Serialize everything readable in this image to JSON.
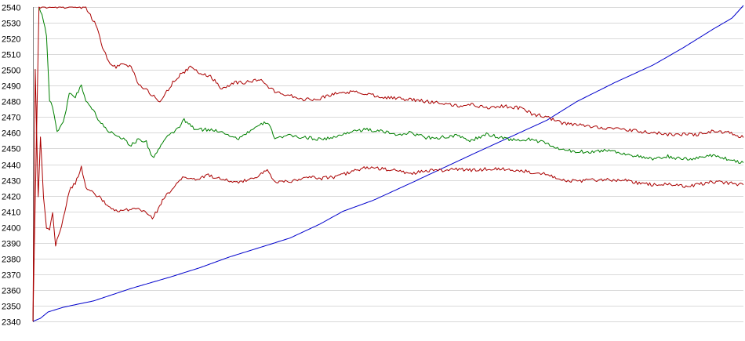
{
  "chart_data": {
    "type": "line",
    "title": "",
    "xlabel": "",
    "ylabel": "",
    "ylim": [
      2340,
      2540
    ],
    "y_ticks": [
      "2340",
      "2350",
      "2360",
      "2370",
      "2380",
      "2390",
      "2400",
      "2410",
      "2420",
      "2430",
      "2440",
      "2450",
      "2460",
      "2470",
      "2480",
      "2490",
      "2500",
      "2510",
      "2520",
      "2530",
      "2540"
    ],
    "grid": true,
    "legend": "none",
    "series": [
      {
        "color": "#0000cc",
        "points": [
          [
            0,
            2340
          ],
          [
            10,
            2342
          ],
          [
            20,
            2346
          ],
          [
            40,
            2349
          ],
          [
            80,
            2353
          ],
          [
            130,
            2361
          ],
          [
            180,
            2368
          ],
          [
            220,
            2374
          ],
          [
            260,
            2381
          ],
          [
            300,
            2387
          ],
          [
            340,
            2393
          ],
          [
            380,
            2402
          ],
          [
            410,
            2410
          ],
          [
            450,
            2417
          ],
          [
            500,
            2428
          ],
          [
            540,
            2437
          ],
          [
            580,
            2446
          ],
          [
            630,
            2457
          ],
          [
            680,
            2468
          ],
          [
            720,
            2480
          ],
          [
            770,
            2492
          ],
          [
            820,
            2503
          ],
          [
            860,
            2514
          ],
          [
            900,
            2526
          ],
          [
            925,
            2533
          ],
          [
            940,
            2541
          ]
        ]
      },
      {
        "color": "#008000",
        "points": [
          [
            8,
            2540
          ],
          [
            12,
            2536
          ],
          [
            18,
            2522
          ],
          [
            22,
            2480
          ],
          [
            26,
            2477
          ],
          [
            32,
            2461
          ],
          [
            40,
            2466
          ],
          [
            48,
            2485
          ],
          [
            56,
            2483
          ],
          [
            64,
            2490
          ],
          [
            70,
            2481
          ],
          [
            80,
            2474
          ],
          [
            90,
            2466
          ],
          [
            100,
            2461
          ],
          [
            110,
            2459
          ],
          [
            120,
            2456
          ],
          [
            130,
            2452
          ],
          [
            140,
            2456
          ],
          [
            150,
            2454
          ],
          [
            158,
            2444
          ],
          [
            164,
            2448
          ],
          [
            175,
            2456
          ],
          [
            190,
            2462
          ],
          [
            200,
            2468
          ],
          [
            215,
            2462
          ],
          [
            230,
            2462
          ],
          [
            250,
            2461
          ],
          [
            270,
            2456
          ],
          [
            290,
            2462
          ],
          [
            310,
            2467
          ],
          [
            320,
            2457
          ],
          [
            340,
            2458
          ],
          [
            360,
            2457
          ],
          [
            380,
            2456
          ],
          [
            400,
            2457
          ],
          [
            420,
            2461
          ],
          [
            440,
            2462
          ],
          [
            460,
            2461
          ],
          [
            480,
            2459
          ],
          [
            500,
            2460
          ],
          [
            520,
            2457
          ],
          [
            540,
            2457
          ],
          [
            560,
            2458
          ],
          [
            580,
            2455
          ],
          [
            600,
            2459
          ],
          [
            620,
            2457
          ],
          [
            640,
            2455
          ],
          [
            660,
            2456
          ],
          [
            680,
            2453
          ],
          [
            700,
            2449
          ],
          [
            720,
            2448
          ],
          [
            740,
            2448
          ],
          [
            760,
            2449
          ],
          [
            780,
            2447
          ],
          [
            800,
            2445
          ],
          [
            820,
            2443
          ],
          [
            840,
            2445
          ],
          [
            860,
            2443
          ],
          [
            880,
            2444
          ],
          [
            900,
            2446
          ],
          [
            920,
            2443
          ],
          [
            940,
            2441
          ]
        ]
      },
      {
        "color": "#aa0000",
        "points": [
          [
            0,
            2340
          ],
          [
            8,
            2540
          ],
          [
            50,
            2540
          ],
          [
            60,
            2540
          ],
          [
            70,
            2540
          ],
          [
            78,
            2533
          ],
          [
            85,
            2527
          ],
          [
            92,
            2515
          ],
          [
            100,
            2505
          ],
          [
            110,
            2502
          ],
          [
            120,
            2504
          ],
          [
            130,
            2502
          ],
          [
            140,
            2491
          ],
          [
            150,
            2487
          ],
          [
            160,
            2483
          ],
          [
            168,
            2479
          ],
          [
            175,
            2485
          ],
          [
            185,
            2492
          ],
          [
            195,
            2497
          ],
          [
            210,
            2502
          ],
          [
            220,
            2498
          ],
          [
            235,
            2496
          ],
          [
            250,
            2488
          ],
          [
            265,
            2492
          ],
          [
            280,
            2492
          ],
          [
            290,
            2493
          ],
          [
            300,
            2494
          ],
          [
            310,
            2490
          ],
          [
            320,
            2486
          ],
          [
            340,
            2484
          ],
          [
            360,
            2481
          ],
          [
            380,
            2482
          ],
          [
            400,
            2485
          ],
          [
            420,
            2486
          ],
          [
            440,
            2485
          ],
          [
            460,
            2483
          ],
          [
            480,
            2482
          ],
          [
            500,
            2481
          ],
          [
            520,
            2480
          ],
          [
            540,
            2479
          ],
          [
            560,
            2477
          ],
          [
            580,
            2478
          ],
          [
            600,
            2476
          ],
          [
            620,
            2477
          ],
          [
            640,
            2476
          ],
          [
            650,
            2475
          ],
          [
            660,
            2472
          ],
          [
            680,
            2470
          ],
          [
            700,
            2466
          ],
          [
            720,
            2465
          ],
          [
            740,
            2464
          ],
          [
            760,
            2463
          ],
          [
            780,
            2462
          ],
          [
            800,
            2461
          ],
          [
            820,
            2460
          ],
          [
            840,
            2459
          ],
          [
            860,
            2459
          ],
          [
            880,
            2459
          ],
          [
            900,
            2461
          ],
          [
            920,
            2460
          ],
          [
            940,
            2457
          ]
        ]
      },
      {
        "color": "#aa0000",
        "points": [
          [
            0,
            2340
          ],
          [
            3,
            2500
          ],
          [
            7,
            2420
          ],
          [
            10,
            2457
          ],
          [
            14,
            2418
          ],
          [
            18,
            2400
          ],
          [
            22,
            2398
          ],
          [
            26,
            2410
          ],
          [
            30,
            2388
          ],
          [
            34,
            2395
          ],
          [
            40,
            2405
          ],
          [
            48,
            2423
          ],
          [
            56,
            2428
          ],
          [
            64,
            2438
          ],
          [
            70,
            2425
          ],
          [
            80,
            2422
          ],
          [
            90,
            2418
          ],
          [
            100,
            2413
          ],
          [
            110,
            2410
          ],
          [
            120,
            2410
          ],
          [
            130,
            2412
          ],
          [
            140,
            2411
          ],
          [
            150,
            2409
          ],
          [
            158,
            2406
          ],
          [
            164,
            2410
          ],
          [
            175,
            2420
          ],
          [
            190,
            2427
          ],
          [
            200,
            2432
          ],
          [
            215,
            2430
          ],
          [
            230,
            2433
          ],
          [
            250,
            2431
          ],
          [
            270,
            2428
          ],
          [
            290,
            2431
          ],
          [
            310,
            2436
          ],
          [
            320,
            2429
          ],
          [
            340,
            2429
          ],
          [
            360,
            2432
          ],
          [
            380,
            2431
          ],
          [
            400,
            2432
          ],
          [
            420,
            2435
          ],
          [
            440,
            2438
          ],
          [
            460,
            2437
          ],
          [
            480,
            2436
          ],
          [
            500,
            2434
          ],
          [
            520,
            2436
          ],
          [
            540,
            2436
          ],
          [
            560,
            2437
          ],
          [
            580,
            2436
          ],
          [
            600,
            2437
          ],
          [
            620,
            2437
          ],
          [
            640,
            2436
          ],
          [
            660,
            2435
          ],
          [
            680,
            2434
          ],
          [
            700,
            2430
          ],
          [
            720,
            2429
          ],
          [
            740,
            2430
          ],
          [
            760,
            2430
          ],
          [
            780,
            2430
          ],
          [
            800,
            2428
          ],
          [
            820,
            2427
          ],
          [
            840,
            2427
          ],
          [
            860,
            2426
          ],
          [
            880,
            2427
          ],
          [
            900,
            2429
          ],
          [
            920,
            2428
          ],
          [
            940,
            2427
          ]
        ]
      }
    ]
  }
}
